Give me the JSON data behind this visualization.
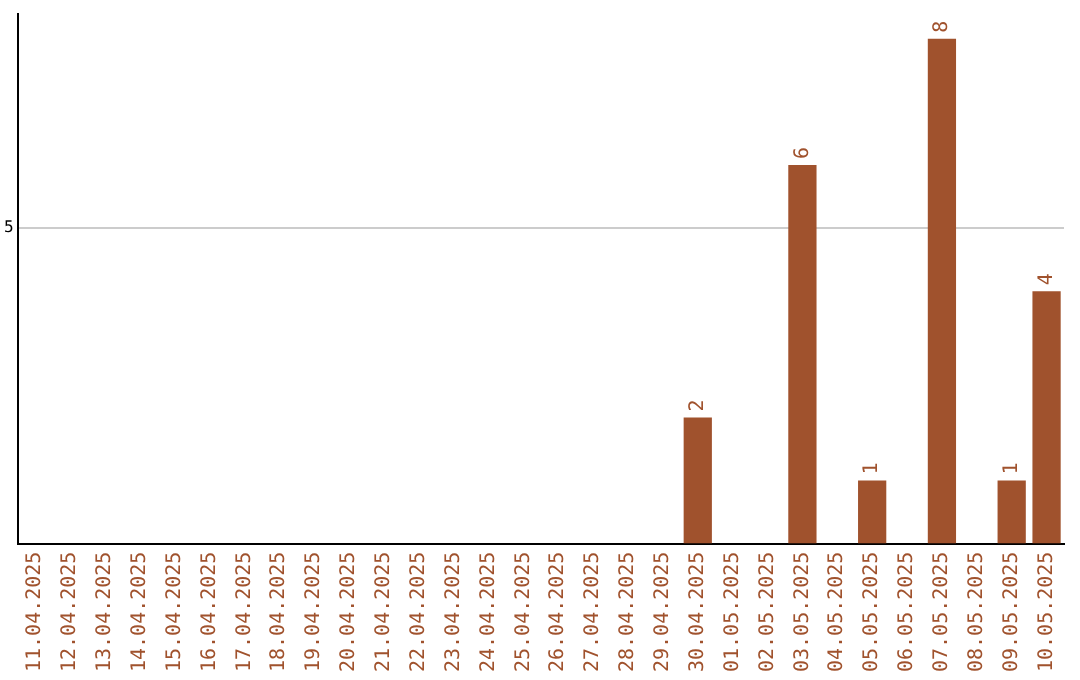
{
  "chart_data": {
    "type": "bar",
    "categories": [
      "11.04.2025",
      "12.04.2025",
      "13.04.2025",
      "14.04.2025",
      "15.04.2025",
      "16.04.2025",
      "17.04.2025",
      "18.04.2025",
      "19.04.2025",
      "20.04.2025",
      "21.04.2025",
      "22.04.2025",
      "23.04.2025",
      "24.04.2025",
      "25.04.2025",
      "26.04.2025",
      "27.04.2025",
      "28.04.2025",
      "29.04.2025",
      "30.04.2025",
      "01.05.2025",
      "02.05.2025",
      "03.05.2025",
      "04.05.2025",
      "05.05.2025",
      "06.05.2025",
      "07.05.2025",
      "08.05.2025",
      "09.05.2025",
      "10.05.2025"
    ],
    "values": [
      null,
      null,
      null,
      null,
      null,
      null,
      null,
      null,
      null,
      null,
      null,
      null,
      null,
      null,
      null,
      null,
      null,
      null,
      null,
      2,
      null,
      null,
      6,
      null,
      1,
      null,
      8,
      null,
      1,
      4
    ],
    "color": "#a0522d",
    "ylim": [
      0,
      8.4
    ],
    "yticks": [
      5
    ],
    "grid": "y",
    "data_labels": true,
    "legend": false
  }
}
